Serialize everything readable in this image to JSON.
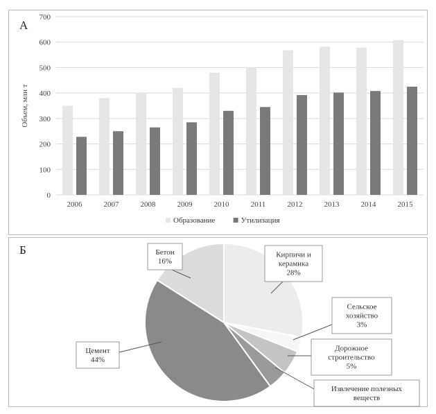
{
  "panels": {
    "a_label": "А",
    "b_label": "Б"
  },
  "colors": {
    "formation": "#e6e6e6",
    "utilization": "#7a7a7a",
    "grid": "#d9d9d9"
  },
  "chart_data": [
    {
      "type": "bar",
      "title": "",
      "xlabel": "",
      "ylabel": "Объем, млн т",
      "ylim": [
        0,
        700
      ],
      "yticks": [
        0,
        100,
        200,
        300,
        400,
        500,
        600,
        700
      ],
      "grid": true,
      "legend": "bottom",
      "categories": [
        "2006",
        "2007",
        "2008",
        "2009",
        "2010",
        "2011",
        "2012",
        "2013",
        "2014",
        "2015"
      ],
      "series": [
        {
          "name": "Образование",
          "color": "#e6e6e6",
          "values": [
            350,
            380,
            398,
            420,
            480,
            500,
            568,
            582,
            578,
            608
          ]
        },
        {
          "name": "Утилизация",
          "color": "#7a7a7a",
          "values": [
            228,
            250,
            265,
            285,
            330,
            345,
            392,
            402,
            408,
            425
          ]
        }
      ]
    },
    {
      "type": "pie",
      "title": "",
      "slices": [
        {
          "label": "Кирпичи и керамика",
          "label_lines": [
            "Кирпичи и",
            "керамика"
          ],
          "percent_text": "28%",
          "value": 28,
          "color": "#ececec"
        },
        {
          "label": "Сельское хозяйство",
          "label_lines": [
            "Сельское",
            "хозяйство"
          ],
          "percent_text": "3%",
          "value": 3,
          "color": "#f7f7f7"
        },
        {
          "label": "Дорожное строительство",
          "label_lines": [
            "Дорожное",
            "строительство"
          ],
          "percent_text": "5%",
          "value": 5,
          "color": "#c4c4c4"
        },
        {
          "label": "Извлечение полезных веществ",
          "label_lines": [
            "Извлечение полезных",
            "веществ"
          ],
          "percent_text": "",
          "value": 4,
          "color": "#9a9a9a"
        },
        {
          "label": "Цемент",
          "label_lines": [
            "Цемент"
          ],
          "percent_text": "44%",
          "value": 44,
          "color": "#8a8a8a"
        },
        {
          "label": "Бетон",
          "label_lines": [
            "Бетон"
          ],
          "percent_text": "16%",
          "value": 16,
          "color": "#dcdcdc"
        }
      ]
    }
  ]
}
